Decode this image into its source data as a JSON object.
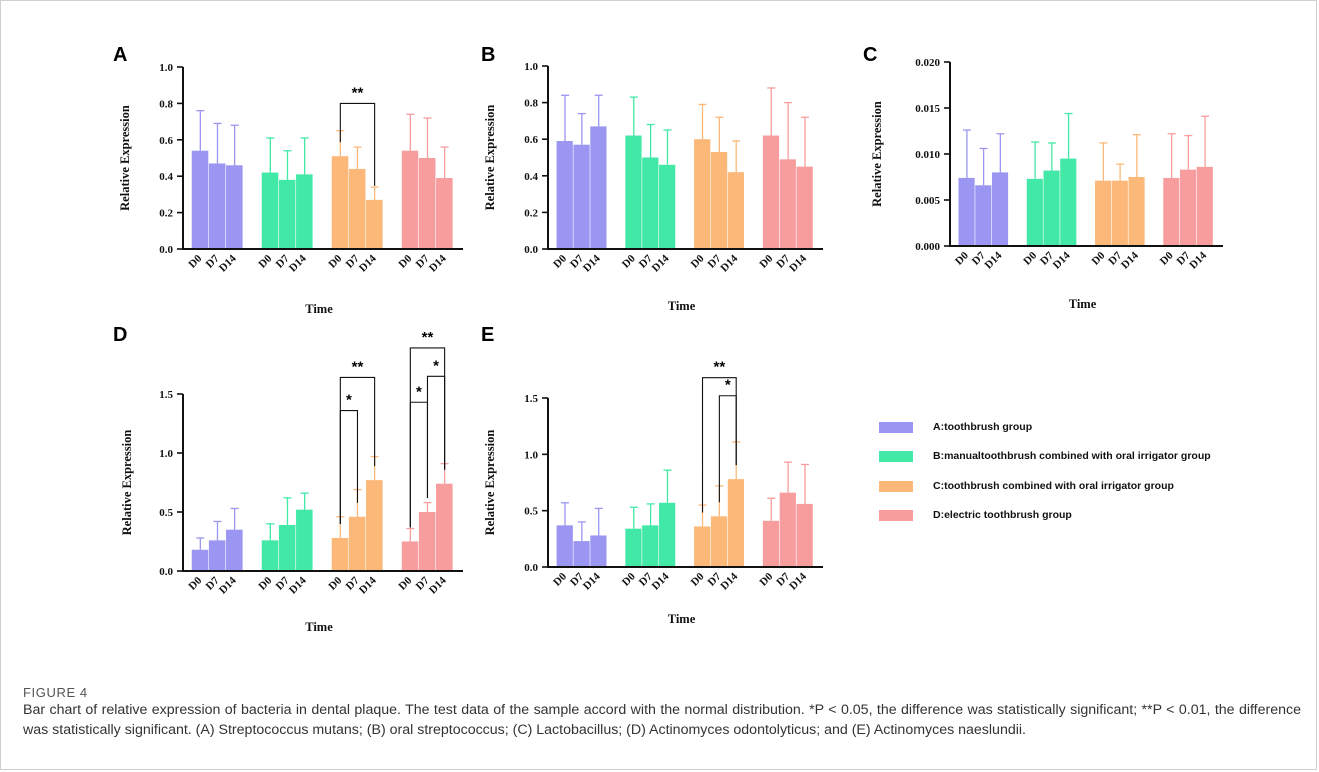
{
  "figure": {
    "label": "FIGURE 4",
    "caption": "Bar chart of relative expression of bacteria in dental plaque. The test data of the sample accord with the normal distribution. *P < 0.05, the difference was statistically significant; **P < 0.01, the difference was statistically significant. (A) Streptococcus mutans; (B) oral streptococcus; (C) Lactobacillus; (D) Actinomyces odontolyticus; and (E) Actinomyces naeslundii."
  },
  "colors": {
    "A": "#9b96f2",
    "B": "#42e8a6",
    "C": "#fbb878",
    "D": "#f79d9d"
  },
  "legend": [
    {
      "key": "A",
      "label": "A:toothbrush group"
    },
    {
      "key": "B",
      "label": "B:manualtoothbrush combined with oral irrigator group"
    },
    {
      "key": "C",
      "label": "C:toothbrush combined with oral irrigator group"
    },
    {
      "key": "D",
      "label": "D:electric toothbrush group"
    }
  ],
  "chart_data": [
    {
      "panel": "A",
      "type": "bar",
      "xlabel": "Time",
      "ylabel": "Relative Expression",
      "ylim": [
        0,
        1.0
      ],
      "yticks": [
        "0.0",
        "0.2",
        "0.4",
        "0.6",
        "0.8",
        "1.0"
      ],
      "categories": [
        "D0",
        "D7",
        "D14"
      ],
      "series": [
        {
          "name": "A:toothbrush group",
          "values": [
            0.54,
            0.47,
            0.46
          ],
          "errors": [
            0.22,
            0.22,
            0.22
          ]
        },
        {
          "name": "B:manualtoothbrush combined with oral irrigator group",
          "values": [
            0.42,
            0.38,
            0.41
          ],
          "errors": [
            0.19,
            0.16,
            0.2
          ]
        },
        {
          "name": "C:toothbrush combined with oral irrigator group",
          "values": [
            0.51,
            0.44,
            0.27
          ],
          "errors": [
            0.14,
            0.12,
            0.07
          ]
        },
        {
          "name": "D:electric toothbrush group",
          "values": [
            0.54,
            0.5,
            0.39
          ],
          "errors": [
            0.2,
            0.22,
            0.17
          ]
        }
      ],
      "significance": [
        {
          "series": 2,
          "from": 0,
          "to": 2,
          "label": "**",
          "y": 0.8
        }
      ]
    },
    {
      "panel": "B",
      "type": "bar",
      "xlabel": "Time",
      "ylabel": "Relative Expression",
      "ylim": [
        0,
        1.0
      ],
      "yticks": [
        "0.0",
        "0.2",
        "0.4",
        "0.6",
        "0.8",
        "1.0"
      ],
      "categories": [
        "D0",
        "D7",
        "D14"
      ],
      "series": [
        {
          "name": "A:toothbrush group",
          "values": [
            0.59,
            0.57,
            0.67
          ],
          "errors": [
            0.25,
            0.17,
            0.17
          ]
        },
        {
          "name": "B:manualtoothbrush combined with oral irrigator group",
          "values": [
            0.62,
            0.5,
            0.46
          ],
          "errors": [
            0.21,
            0.18,
            0.19
          ]
        },
        {
          "name": "C:toothbrush combined with oral irrigator group",
          "values": [
            0.6,
            0.53,
            0.42
          ],
          "errors": [
            0.19,
            0.19,
            0.17
          ]
        },
        {
          "name": "D:electric toothbrush group",
          "values": [
            0.62,
            0.49,
            0.45
          ],
          "errors": [
            0.26,
            0.31,
            0.27
          ]
        }
      ],
      "significance": []
    },
    {
      "panel": "C",
      "type": "bar",
      "xlabel": "Time",
      "ylabel": "Relative Expression",
      "ylim": [
        0,
        0.02
      ],
      "yticks": [
        "0.000",
        "0.005",
        "0.010",
        "0.015",
        "0.020"
      ],
      "categories": [
        "D0",
        "D7",
        "D14"
      ],
      "series": [
        {
          "name": "A:toothbrush group",
          "values": [
            0.0074,
            0.0066,
            0.008
          ],
          "errors": [
            0.0052,
            0.004,
            0.0042
          ]
        },
        {
          "name": "B:manualtoothbrush combined with oral irrigator group",
          "values": [
            0.0073,
            0.0082,
            0.0095
          ],
          "errors": [
            0.004,
            0.003,
            0.0049
          ]
        },
        {
          "name": "C:toothbrush combined with oral irrigator group",
          "values": [
            0.0071,
            0.0071,
            0.0075
          ],
          "errors": [
            0.0041,
            0.0018,
            0.0046
          ]
        },
        {
          "name": "D:electric toothbrush group",
          "values": [
            0.0074,
            0.0083,
            0.0086
          ],
          "errors": [
            0.0048,
            0.0037,
            0.0055
          ]
        }
      ],
      "significance": []
    },
    {
      "panel": "D",
      "type": "bar",
      "xlabel": "Time",
      "ylabel": "Relative Expression",
      "ylim": [
        0,
        1.5
      ],
      "yticks": [
        "0.0",
        "0.5",
        "1.0",
        "1.5"
      ],
      "categories": [
        "D0",
        "D7",
        "D14"
      ],
      "series": [
        {
          "name": "A:toothbrush group",
          "values": [
            0.18,
            0.26,
            0.35
          ],
          "errors": [
            0.1,
            0.16,
            0.18
          ]
        },
        {
          "name": "B:manualtoothbrush combined with oral irrigator group",
          "values": [
            0.26,
            0.39,
            0.52
          ],
          "errors": [
            0.14,
            0.23,
            0.14
          ]
        },
        {
          "name": "C:toothbrush combined with oral irrigator group",
          "values": [
            0.28,
            0.46,
            0.77
          ],
          "errors": [
            0.18,
            0.23,
            0.2
          ]
        },
        {
          "name": "D:electric toothbrush group",
          "values": [
            0.25,
            0.5,
            0.74
          ],
          "errors": [
            0.11,
            0.08,
            0.17
          ]
        }
      ],
      "significance": [
        {
          "series": 2,
          "from": 0,
          "to": 2,
          "label": "**",
          "y": 1.64
        },
        {
          "series": 2,
          "from": 0,
          "to": 1,
          "label": "*",
          "y": 1.36
        },
        {
          "series": 3,
          "from": 0,
          "to": 2,
          "label": "**",
          "y": 1.89
        },
        {
          "series": 3,
          "from": 1,
          "to": 2,
          "label": "*",
          "y": 1.65
        },
        {
          "series": 3,
          "from": 0,
          "to": 1,
          "label": "*",
          "y": 1.43
        }
      ]
    },
    {
      "panel": "E",
      "type": "bar",
      "xlabel": "Time",
      "ylabel": "Relative Expression",
      "ylim": [
        0,
        1.5
      ],
      "yticks": [
        "0.0",
        "0.5",
        "1.0",
        "1.5"
      ],
      "categories": [
        "D0",
        "D7",
        "D14"
      ],
      "series": [
        {
          "name": "A:toothbrush group",
          "values": [
            0.37,
            0.23,
            0.28
          ],
          "errors": [
            0.2,
            0.17,
            0.24
          ]
        },
        {
          "name": "B:manualtoothbrush combined with oral irrigator group",
          "values": [
            0.34,
            0.37,
            0.57
          ],
          "errors": [
            0.19,
            0.19,
            0.29
          ]
        },
        {
          "name": "C:toothbrush combined with oral irrigator group",
          "values": [
            0.36,
            0.45,
            0.78
          ],
          "errors": [
            0.19,
            0.27,
            0.33
          ]
        },
        {
          "name": "D:electric toothbrush group",
          "values": [
            0.41,
            0.66,
            0.56
          ],
          "errors": [
            0.2,
            0.27,
            0.35
          ]
        }
      ],
      "significance": [
        {
          "series": 2,
          "from": 0,
          "to": 2,
          "label": "**",
          "y": 1.68
        },
        {
          "series": 2,
          "from": 1,
          "to": 2,
          "label": "*",
          "y": 1.52
        }
      ]
    }
  ]
}
